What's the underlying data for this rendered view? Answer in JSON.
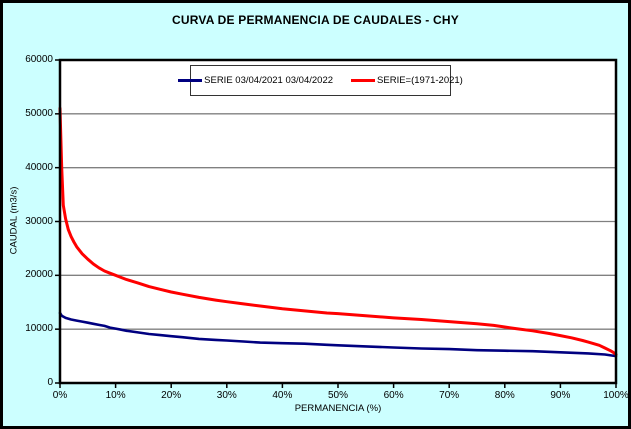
{
  "title": "CURVA DE PERMANENCIA DE CAUDALES - CHY",
  "colors": {
    "background": "#CCFFFF",
    "plot_background": "#FFFFFF",
    "gridline": "#808080",
    "axis": "#000000",
    "series_blue": "#000080",
    "series_red": "#FF0000"
  },
  "chart_data": {
    "type": "line",
    "title": "CURVA DE PERMANENCIA DE CAUDALES - CHY",
    "xlabel": "PERMANENCIA (%)",
    "ylabel": "CAUDAL (m3/s)",
    "xlim": [
      0,
      100
    ],
    "ylim": [
      0,
      60000
    ],
    "grid": "horizontal",
    "legend_position": "top-center",
    "x_ticks": [
      {
        "value": 0,
        "label": "0%"
      },
      {
        "value": 10,
        "label": "10%"
      },
      {
        "value": 20,
        "label": "20%"
      },
      {
        "value": 30,
        "label": "30%"
      },
      {
        "value": 40,
        "label": "40%"
      },
      {
        "value": 50,
        "label": "50%"
      },
      {
        "value": 60,
        "label": "60%"
      },
      {
        "value": 70,
        "label": "70%"
      },
      {
        "value": 80,
        "label": "80%"
      },
      {
        "value": 90,
        "label": "90%"
      },
      {
        "value": 100,
        "label": "100%"
      }
    ],
    "y_ticks": [
      {
        "value": 0,
        "label": "0"
      },
      {
        "value": 10000,
        "label": "10000"
      },
      {
        "value": 20000,
        "label": "20000"
      },
      {
        "value": 30000,
        "label": "30000"
      },
      {
        "value": 40000,
        "label": "40000"
      },
      {
        "value": 50000,
        "label": "50000"
      },
      {
        "value": 60000,
        "label": "60000"
      }
    ],
    "series": [
      {
        "name": "SERIE 03/04/2021 03/04/2022",
        "color": "#000080",
        "stroke_width": 2.6,
        "points": [
          [
            0,
            13000
          ],
          [
            0.3,
            12500
          ],
          [
            1,
            12100
          ],
          [
            2,
            11800
          ],
          [
            3,
            11600
          ],
          [
            4,
            11400
          ],
          [
            5,
            11200
          ],
          [
            6,
            11000
          ],
          [
            7,
            10800
          ],
          [
            8,
            10600
          ],
          [
            9,
            10300
          ],
          [
            10,
            10100
          ],
          [
            11,
            9900
          ],
          [
            12,
            9700
          ],
          [
            14,
            9400
          ],
          [
            16,
            9100
          ],
          [
            18,
            8900
          ],
          [
            20,
            8700
          ],
          [
            22,
            8500
          ],
          [
            25,
            8200
          ],
          [
            28,
            8000
          ],
          [
            30,
            7900
          ],
          [
            33,
            7700
          ],
          [
            36,
            7500
          ],
          [
            40,
            7400
          ],
          [
            44,
            7300
          ],
          [
            48,
            7100
          ],
          [
            50,
            7000
          ],
          [
            55,
            6800
          ],
          [
            60,
            6600
          ],
          [
            65,
            6400
          ],
          [
            70,
            6300
          ],
          [
            75,
            6100
          ],
          [
            80,
            6000
          ],
          [
            85,
            5900
          ],
          [
            90,
            5700
          ],
          [
            95,
            5500
          ],
          [
            98,
            5300
          ],
          [
            100,
            5000
          ]
        ]
      },
      {
        "name": "SERIE=(1971-2021)",
        "color": "#FF0000",
        "stroke_width": 3,
        "points": [
          [
            0,
            51000
          ],
          [
            0.3,
            40000
          ],
          [
            0.6,
            33000
          ],
          [
            1,
            30500
          ],
          [
            1.5,
            28500
          ],
          [
            2,
            27200
          ],
          [
            2.5,
            26200
          ],
          [
            3,
            25300
          ],
          [
            4,
            24000
          ],
          [
            5,
            23000
          ],
          [
            6,
            22100
          ],
          [
            7,
            21400
          ],
          [
            8,
            20800
          ],
          [
            9,
            20400
          ],
          [
            10,
            20000
          ],
          [
            11,
            19600
          ],
          [
            12,
            19200
          ],
          [
            14,
            18600
          ],
          [
            16,
            17900
          ],
          [
            18,
            17400
          ],
          [
            20,
            16900
          ],
          [
            22,
            16500
          ],
          [
            25,
            15900
          ],
          [
            28,
            15400
          ],
          [
            30,
            15100
          ],
          [
            33,
            14700
          ],
          [
            36,
            14300
          ],
          [
            40,
            13800
          ],
          [
            44,
            13400
          ],
          [
            48,
            13000
          ],
          [
            50,
            12900
          ],
          [
            55,
            12500
          ],
          [
            60,
            12100
          ],
          [
            65,
            11800
          ],
          [
            70,
            11400
          ],
          [
            75,
            11000
          ],
          [
            78,
            10700
          ],
          [
            80,
            10400
          ],
          [
            82,
            10100
          ],
          [
            85,
            9700
          ],
          [
            88,
            9200
          ],
          [
            90,
            8800
          ],
          [
            92,
            8400
          ],
          [
            94,
            7900
          ],
          [
            95,
            7600
          ],
          [
            96,
            7300
          ],
          [
            97,
            7000
          ],
          [
            98,
            6500
          ],
          [
            99,
            6000
          ],
          [
            99.5,
            5700
          ],
          [
            100,
            5300
          ]
        ]
      }
    ]
  },
  "legend": {
    "items": [
      {
        "label": "SERIE 03/04/2021 03/04/2022",
        "color": "#000080"
      },
      {
        "label": "SERIE=(1971-2021)",
        "color": "#FF0000"
      }
    ]
  }
}
